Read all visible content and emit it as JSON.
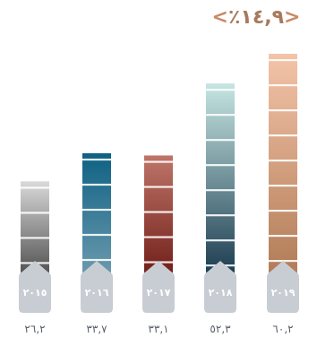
{
  "headline": {
    "open_bracket": "<",
    "text": "٪١٤,٩",
    "close_bracket": ">",
    "color": "#A87A5C",
    "bracket_color": "#C98A66"
  },
  "chart_data": {
    "type": "bar",
    "categories": [
      "٢٠١٥",
      "٢٠١٦",
      "٢٠١٧",
      "٢٠١٨",
      "٢٠١٩"
    ],
    "values": [
      26.2,
      33.7,
      33.1,
      52.3,
      60.2
    ],
    "value_labels": [
      "٢٦,٢",
      "٣٣,٧",
      "٣٣,١",
      "٥٢,٣",
      "٦٠,٢"
    ],
    "ylim": [
      0,
      60.2
    ],
    "grid": false,
    "colors": {
      "label_text": "#59606B",
      "year_badge": "#C8CDD3",
      "year_text": "#ffffff",
      "segment_line": "#ffffff"
    },
    "bar_gradients": [
      [
        "#D9D9D9",
        "#4A4A4A"
      ],
      [
        "#0E6183",
        "#6F9CB0"
      ],
      [
        "#BE7568",
        "#6E1C16"
      ],
      [
        "#C6E6E3",
        "#18384D"
      ],
      [
        "#F4C4A9",
        "#B07A55"
      ]
    ]
  }
}
